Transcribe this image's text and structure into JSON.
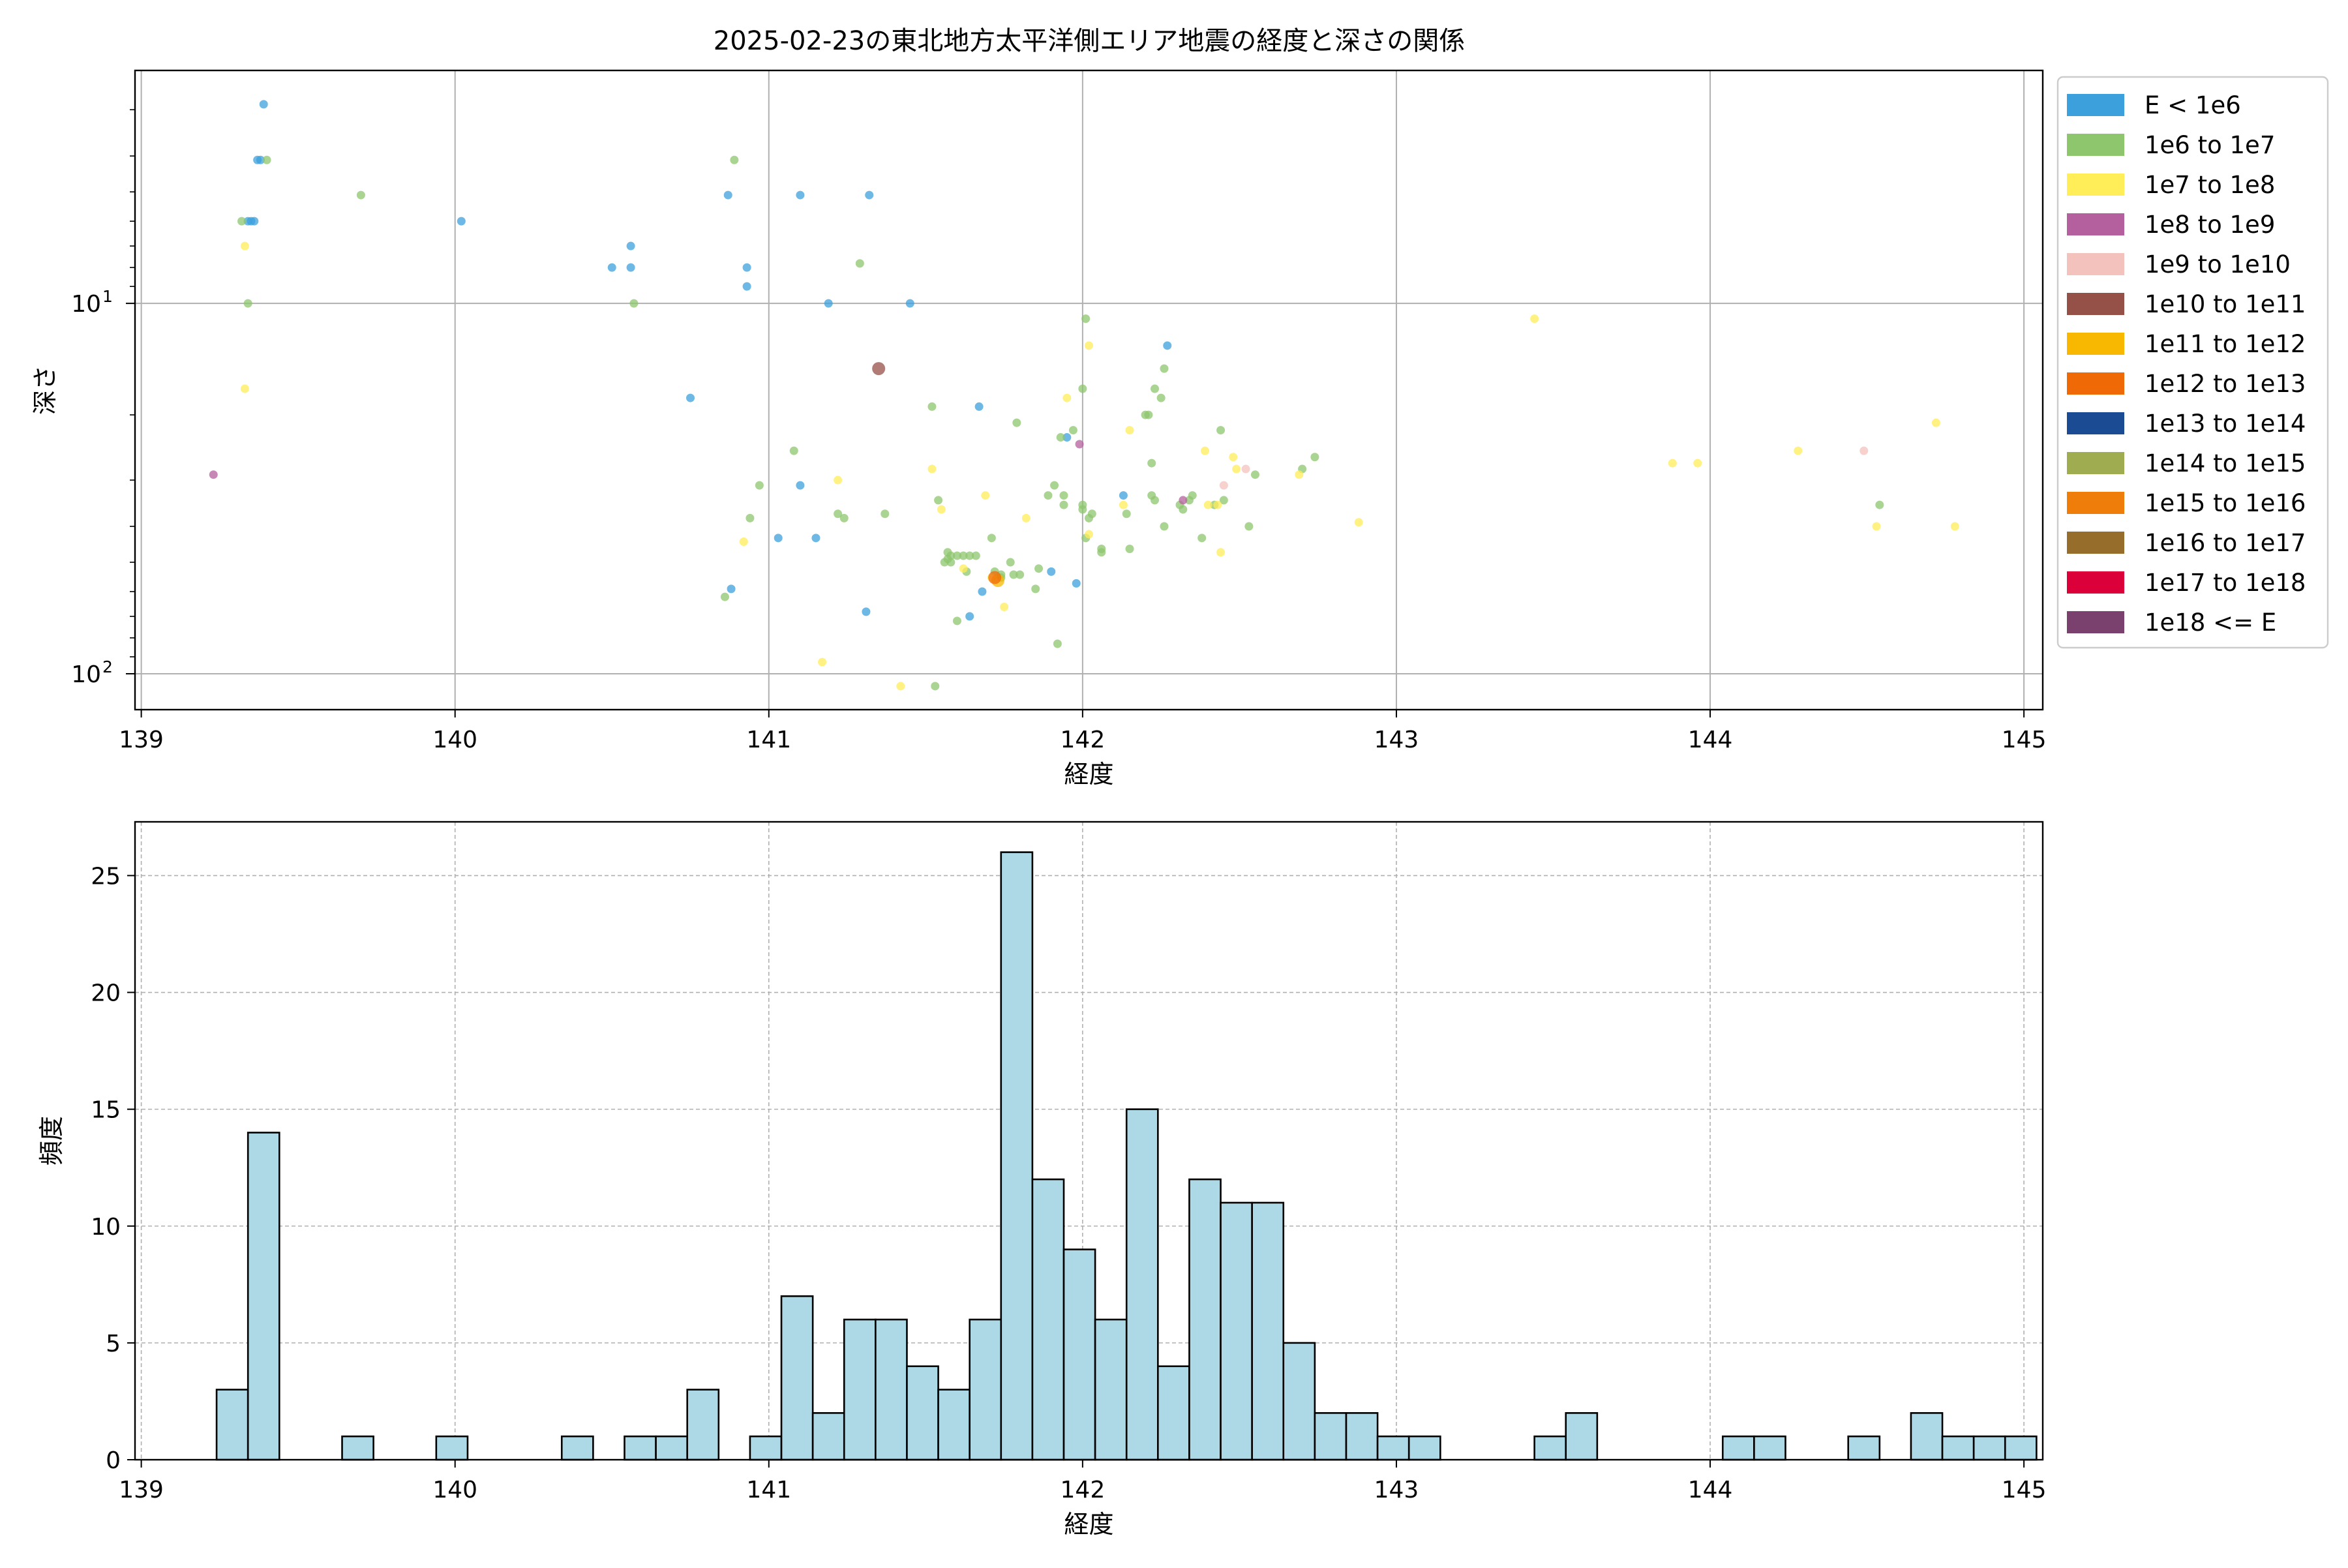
{
  "figure": {
    "title": "2025-02-23の東北地方太平洋側エリア地震の経度と深さの関係"
  },
  "colors": {
    "grid": "#b0b0b0",
    "hist_fill": "#add8e6",
    "hist_edge": "#000000"
  },
  "chart_data": [
    {
      "type": "scatter",
      "title": "2025-02-23の東北地方太平洋側エリア地震の経度と深さの関係",
      "xlabel": "経度",
      "ylabel": "深さ",
      "xlim": [
        138.98,
        145.06
      ],
      "ylim": [
        125,
        2.35
      ],
      "yscale": "log",
      "y_inverted": true,
      "xticks": [
        139,
        140,
        141,
        142,
        143,
        144,
        145
      ],
      "yticks": [
        {
          "value": 10,
          "label": "10",
          "exp": "1"
        },
        {
          "value": 100,
          "label": "10",
          "exp": "2"
        }
      ],
      "grid": true,
      "legend_position": "outside-right",
      "legend": [
        {
          "label": "E < 1e6",
          "color": "#3ca0dc"
        },
        {
          "label": "1e6 to 1e7",
          "color": "#8dc66d"
        },
        {
          "label": "1e7 to 1e8",
          "color": "#ffee58"
        },
        {
          "label": "1e8 to 1e9",
          "color": "#b5609e"
        },
        {
          "label": "1e9 to 1e10",
          "color": "#f4c2bd"
        },
        {
          "label": "1e10 to 1e11",
          "color": "#955047"
        },
        {
          "label": "1e11 to 1e12",
          "color": "#f8b700"
        },
        {
          "label": "1e12 to 1e13",
          "color": "#ef6a07"
        },
        {
          "label": "1e13 to 1e14",
          "color": "#1b4b93"
        },
        {
          "label": "1e14 to 1e15",
          "color": "#9fad50"
        },
        {
          "label": "1e15 to 1e16",
          "color": "#ef7d0a"
        },
        {
          "label": "1e16 to 1e17",
          "color": "#976d2b"
        },
        {
          "label": "1e17 to 1e18",
          "color": "#db003a"
        },
        {
          "label": "1e18 <= E",
          "color": "#7a416e"
        }
      ],
      "series": [
        {
          "class": 0,
          "points": [
            [
              139.39,
              2.9
            ],
            [
              139.37,
              4.1
            ],
            [
              139.38,
              4.1
            ],
            [
              139.34,
              6.0
            ],
            [
              139.36,
              6.0
            ],
            [
              139.35,
              6.0
            ],
            [
              140.02,
              6.0
            ],
            [
              140.5,
              8.0
            ],
            [
              140.56,
              8.0
            ],
            [
              140.56,
              7.0
            ],
            [
              140.93,
              8.0
            ],
            [
              140.93,
              9.0
            ],
            [
              140.87,
              5.1
            ],
            [
              141.1,
              5.1
            ],
            [
              141.32,
              5.1
            ],
            [
              141.19,
              10.0
            ],
            [
              141.45,
              10.0
            ],
            [
              140.75,
              18.0
            ],
            [
              141.67,
              19.0
            ],
            [
              142.27,
              13.0
            ],
            [
              141.95,
              23.0
            ],
            [
              142.13,
              33.0
            ],
            [
              141.1,
              31.0
            ],
            [
              141.03,
              43.0
            ],
            [
              141.15,
              43.0
            ],
            [
              140.88,
              59.0
            ],
            [
              141.31,
              68.0
            ],
            [
              141.64,
              70.0
            ],
            [
              141.68,
              60.0
            ],
            [
              141.9,
              53.0
            ],
            [
              141.98,
              57.0
            ]
          ]
        },
        {
          "class": 1,
          "points": [
            [
              139.32,
              6.0
            ],
            [
              139.34,
              10.0
            ],
            [
              139.7,
              5.1
            ],
            [
              139.4,
              4.1
            ],
            [
              140.89,
              4.1
            ],
            [
              140.57,
              10.0
            ],
            [
              141.29,
              7.8
            ],
            [
              141.08,
              25.0
            ],
            [
              140.97,
              31.0
            ],
            [
              140.94,
              38.0
            ],
            [
              141.22,
              37.0
            ],
            [
              141.24,
              38.0
            ],
            [
              141.37,
              37.0
            ],
            [
              141.52,
              19.0
            ],
            [
              142.01,
              11.0
            ],
            [
              142.0,
              17.0
            ],
            [
              142.23,
              17.0
            ],
            [
              142.25,
              18.0
            ],
            [
              142.21,
              20.0
            ],
            [
              142.2,
              20.0
            ],
            [
              142.26,
              15.0
            ],
            [
              141.79,
              21.0
            ],
            [
              141.93,
              23.0
            ],
            [
              141.97,
              22.0
            ],
            [
              142.44,
              22.0
            ],
            [
              142.55,
              29.0
            ],
            [
              142.7,
              28.0
            ],
            [
              142.74,
              26.0
            ],
            [
              142.22,
              27.0
            ],
            [
              141.89,
              33.0
            ],
            [
              141.94,
              33.0
            ],
            [
              141.94,
              35.0
            ],
            [
              141.91,
              31.0
            ],
            [
              142.0,
              35.0
            ],
            [
              142.02,
              38.0
            ],
            [
              142.0,
              36.0
            ],
            [
              142.14,
              37.0
            ],
            [
              142.22,
              33.0
            ],
            [
              142.23,
              34.0
            ],
            [
              142.32,
              36.0
            ],
            [
              142.35,
              33.0
            ],
            [
              142.34,
              34.0
            ],
            [
              142.45,
              34.0
            ],
            [
              142.26,
              40.0
            ],
            [
              142.38,
              43.0
            ],
            [
              142.53,
              40.0
            ],
            [
              142.15,
              46.0
            ],
            [
              142.06,
              47.0
            ],
            [
              142.06,
              46.0
            ],
            [
              142.01,
              43.0
            ],
            [
              141.71,
              43.0
            ],
            [
              141.74,
              55.0
            ],
            [
              141.8,
              54.0
            ],
            [
              141.66,
              48.0
            ],
            [
              141.62,
              48.0
            ],
            [
              141.57,
              47.0
            ],
            [
              141.6,
              48.0
            ],
            [
              141.57,
              49.0
            ],
            [
              141.58,
              50.0
            ],
            [
              141.58,
              48.0
            ],
            [
              141.56,
              50.0
            ],
            [
              141.64,
              48.0
            ],
            [
              141.72,
              53.0
            ],
            [
              141.86,
              52.0
            ],
            [
              141.74,
              54.0
            ],
            [
              141.78,
              54.0
            ],
            [
              141.63,
              53.0
            ],
            [
              141.85,
              59.0
            ],
            [
              141.6,
              72.0
            ],
            [
              141.92,
              83.0
            ],
            [
              141.53,
              108.0
            ],
            [
              140.86,
              62.0
            ],
            [
              141.54,
              34.0
            ],
            [
              142.03,
              37.0
            ],
            [
              142.42,
              35.0
            ],
            [
              144.54,
              35.0
            ],
            [
              141.77,
              50.0
            ],
            [
              142.31,
              35.0
            ]
          ]
        },
        {
          "class": 2,
          "points": [
            [
              139.33,
              7.0
            ],
            [
              139.33,
              17.0
            ],
            [
              141.52,
              28.0
            ],
            [
              141.55,
              36.0
            ],
            [
              141.69,
              33.0
            ],
            [
              141.82,
              38.0
            ],
            [
              141.95,
              18.0
            ],
            [
              142.02,
              13.0
            ],
            [
              142.13,
              35.0
            ],
            [
              142.15,
              22.0
            ],
            [
              142.39,
              25.0
            ],
            [
              142.43,
              35.0
            ],
            [
              142.44,
              47.0
            ],
            [
              142.48,
              26.0
            ],
            [
              142.49,
              28.0
            ],
            [
              142.4,
              35.0
            ],
            [
              142.69,
              29.0
            ],
            [
              142.88,
              39.0
            ],
            [
              143.44,
              11.0
            ],
            [
              143.88,
              27.0
            ],
            [
              143.96,
              27.0
            ],
            [
              144.28,
              25.0
            ],
            [
              144.53,
              40.0
            ],
            [
              144.72,
              21.0
            ],
            [
              144.78,
              40.0
            ],
            [
              140.92,
              44.0
            ],
            [
              141.22,
              30.0
            ],
            [
              141.17,
              93.0
            ],
            [
              141.42,
              108.0
            ],
            [
              141.75,
              66.0
            ],
            [
              141.62,
              52.0
            ],
            [
              142.02,
              42.0
            ],
            [
              141.71,
              55.0
            ]
          ]
        },
        {
          "class": 3,
          "points": [
            [
              139.23,
              29.0
            ],
            [
              142.32,
              34.0
            ],
            [
              141.99,
              24.0
            ]
          ]
        },
        {
          "class": 4,
          "points": [
            [
              142.45,
              31.0
            ],
            [
              144.49,
              25.0
            ],
            [
              142.52,
              28.0
            ]
          ]
        },
        {
          "class": 5,
          "points": [
            [
              141.35,
              15.0
            ]
          ]
        },
        {
          "class": 6,
          "points": [
            [
              141.73,
              56.0
            ]
          ]
        },
        {
          "class": 7,
          "points": [
            [
              141.72,
              55.0
            ]
          ]
        }
      ]
    },
    {
      "type": "histogram",
      "xlabel": "経度",
      "ylabel": "頻度",
      "xlim": [
        138.98,
        145.06
      ],
      "ylim": [
        0,
        27.3
      ],
      "xticks": [
        139,
        140,
        141,
        142,
        143,
        144,
        145
      ],
      "yticks": [
        0,
        5,
        10,
        15,
        20,
        25
      ],
      "grid": true,
      "bin_start": 139.24,
      "bin_width": 0.1,
      "counts": [
        3,
        14,
        0,
        0,
        1,
        0,
        0,
        1,
        0,
        0,
        0,
        1,
        0,
        1,
        1,
        3,
        0,
        1,
        7,
        2,
        6,
        6,
        4,
        3,
        6,
        26,
        12,
        9,
        6,
        15,
        4,
        12,
        11,
        11,
        5,
        2,
        2,
        1,
        1,
        0,
        0,
        0,
        1,
        2,
        0,
        0,
        0,
        0,
        1,
        1,
        0,
        0,
        1,
        0,
        2,
        1,
        1,
        1
      ]
    }
  ]
}
